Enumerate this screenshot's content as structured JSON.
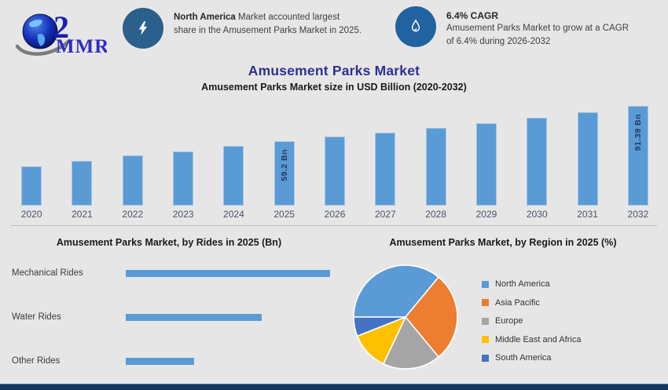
{
  "page": {
    "background_color": "#e7e6e6",
    "footer_color": "#17375e",
    "accent_blue": "#5b9bd5",
    "title_color": "#2e3192"
  },
  "logo": {
    "text": "MMR",
    "icon": "globe-icon"
  },
  "header": {
    "callout1": {
      "icon": "lightning-icon",
      "bold": "North America",
      "rest_line1": " Market accounted largest",
      "line2": "share in the Amusement Parks Market in 2025."
    },
    "callout2": {
      "icon": "flame-drop-icon",
      "heading": "6.4% CAGR",
      "line1": "Amusement Parks Market to grow at a CAGR",
      "line2": "of 6.4% during 2026-2032"
    }
  },
  "main_title": "Amusement Parks Market",
  "chart_data": [
    {
      "type": "bar",
      "title": "Amusement Parks Market size in USD Billion (2020-2032)",
      "categories": [
        "2020",
        "2021",
        "2022",
        "2023",
        "2024",
        "2025",
        "2026",
        "2027",
        "2028",
        "2029",
        "2030",
        "2031",
        "2032"
      ],
      "values": [
        36.1,
        41.2,
        46.2,
        49.8,
        54.9,
        59.2,
        63.0,
        67.0,
        71.3,
        75.9,
        80.7,
        85.9,
        91.39
      ],
      "data_labels": {
        "2025": "59.2 Bn",
        "2032": "91.39 Bn"
      },
      "bar_color": "#5b9bd5",
      "label_color": "#1f3864",
      "ylabel": "USD Billion",
      "ylim": [
        0,
        95
      ],
      "grid": false,
      "note": "only 2025 and 2032 carry data labels; other values estimated from bar heights"
    },
    {
      "type": "bar",
      "orientation": "horizontal",
      "title": "Amusement Parks Market, by Rides in 2025 (Bn)",
      "categories": [
        "Mechanical Rides",
        "Water Rides",
        "Other Rides"
      ],
      "values": [
        30,
        20,
        10
      ],
      "bar_color": "#5b9bd5",
      "xlim": [
        0,
        30
      ],
      "grid": false,
      "note": "values estimated from relative bar lengths; no data labels shown"
    },
    {
      "type": "pie",
      "title": "Amusement Parks Market, by Region in 2025 (%)",
      "labels": [
        "North America",
        "Asia Pacific",
        "Europe",
        "Middle East and Africa",
        "South America"
      ],
      "values": [
        36,
        28,
        18,
        12,
        6
      ],
      "colors": [
        "#5b9bd5",
        "#ed7d31",
        "#a5a5a5",
        "#ffc000",
        "#4472c4"
      ],
      "start_angle": 270,
      "direction": "clockwise",
      "legend_position": "right",
      "note": "percentages estimated from slice angles; no data labels shown"
    }
  ]
}
